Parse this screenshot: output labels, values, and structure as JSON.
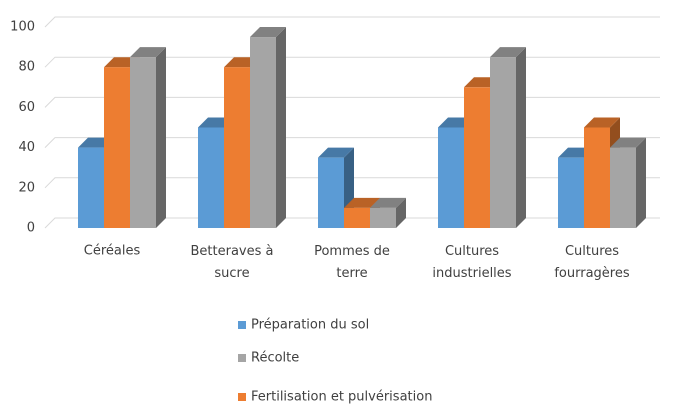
{
  "chart_data": {
    "type": "bar3d",
    "categories": [
      "Céréales",
      "Betteraves à sucre",
      "Pommes de terre",
      "Cultures industrielles",
      "Cultures fourragères"
    ],
    "series": [
      {
        "name": "Préparation du sol",
        "color": "#5b9bd5",
        "values": [
          40,
          50,
          35,
          50,
          35
        ]
      },
      {
        "name": "Récolte",
        "color": "#a5a5a5",
        "values": [
          85,
          95,
          10,
          85,
          40
        ]
      },
      {
        "name": "Fertilisation et pulvérisation",
        "color": "#ed7d31",
        "values": [
          80,
          80,
          10,
          70,
          50
        ]
      }
    ],
    "ylim": [
      0,
      100
    ],
    "yticks": [
      0,
      20,
      40,
      60,
      80,
      100
    ],
    "grid": true,
    "legend": "bottom"
  }
}
